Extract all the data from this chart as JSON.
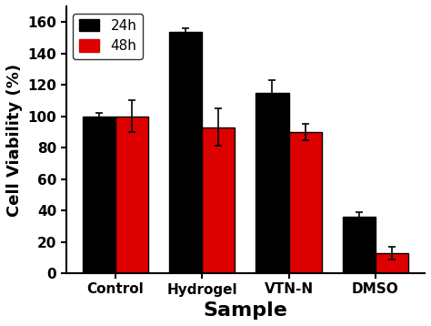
{
  "categories": [
    "Control",
    "Hydrogel",
    "VTN-N",
    "DMSO"
  ],
  "values_24h": [
    100,
    154,
    115,
    36
  ],
  "values_48h": [
    100,
    93,
    90,
    13
  ],
  "errors_24h": [
    2,
    2,
    8,
    3
  ],
  "errors_48h": [
    10,
    12,
    5,
    4
  ],
  "color_24h": "#000000",
  "color_48h": "#dd0000",
  "bar_width": 0.38,
  "ylabel": "Cell Viability (%)",
  "xlabel": "Sample",
  "ylim": [
    0,
    170
  ],
  "yticks": [
    0,
    20,
    40,
    60,
    80,
    100,
    120,
    140,
    160
  ],
  "legend_labels": [
    "24h",
    "48h"
  ],
  "ylabel_fontsize": 13,
  "xlabel_fontsize": 16,
  "tick_fontsize": 11,
  "legend_fontsize": 11,
  "background_color": "#ffffff",
  "edge_color": "#000000"
}
